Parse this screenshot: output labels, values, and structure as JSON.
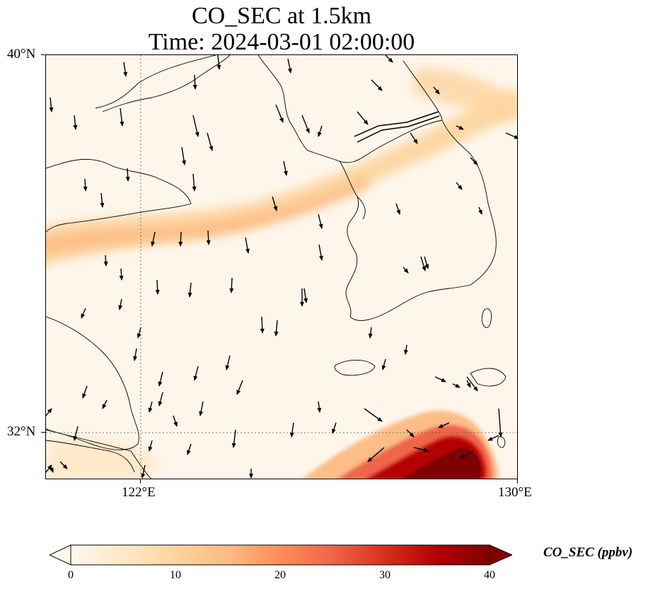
{
  "figure": {
    "title_line1": "CO_SEC at 1.5km",
    "title_line2": "Time: 2024-03-01 02:00:00"
  },
  "map": {
    "extent_lon": [
      118,
      130
    ],
    "extent_lat": [
      29.5,
      40
    ],
    "lat_ticks": [
      {
        "value": 40,
        "label": "40°N"
      },
      {
        "value": 32,
        "label": "32°N"
      }
    ],
    "lon_ticks": [
      {
        "value": 122,
        "label": "122°E"
      },
      {
        "value": 130,
        "label": "130°E"
      }
    ],
    "gridlines": "dotted",
    "field": "CO_SEC",
    "plume_band": "westward band of ~10–18 ppbv from the Yellow Sea toward the Korean peninsula",
    "plume_hotspot": "up to ≥40 ppbv at the bottom-right corner (south of Korea)",
    "wind_vectors": "black arrows, mostly north-to-south flow"
  },
  "colorbar": {
    "label": "CO_SEC (ppbv)",
    "cmap": "OrRd",
    "min": 0,
    "max": 40,
    "extend": "both",
    "ticks": [
      "0",
      "10",
      "20",
      "30",
      "40"
    ],
    "colors": [
      "#fff7ec",
      "#fee8c8",
      "#fdd49e",
      "#fdbb84",
      "#fc8d59",
      "#ef6548",
      "#d7301f",
      "#b30000",
      "#7f0000"
    ]
  }
}
